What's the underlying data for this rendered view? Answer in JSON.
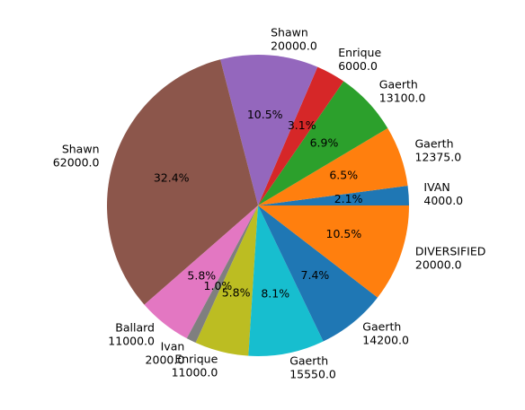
{
  "chart_data": {
    "type": "pie",
    "start_angle_deg": 0,
    "direction": "counterclockwise",
    "slices": [
      {
        "label": "IVAN",
        "value": 4000.0,
        "value_text": "4000.0",
        "pct_text": "2.1%",
        "color": "#1f77b4"
      },
      {
        "label": "Gaerth",
        "value": 12375.0,
        "value_text": "12375.0",
        "pct_text": "6.5%",
        "color": "#ff7f0e"
      },
      {
        "label": "Gaerth",
        "value": 13100.0,
        "value_text": "13100.0",
        "pct_text": "6.9%",
        "color": "#2ca02c"
      },
      {
        "label": "Enrique",
        "value": 6000.0,
        "value_text": "6000.0",
        "pct_text": "3.1%",
        "color": "#d62728"
      },
      {
        "label": "Shawn",
        "value": 20000.0,
        "value_text": "20000.0",
        "pct_text": "10.5%",
        "color": "#9467bd"
      },
      {
        "label": "Shawn",
        "value": 62000.0,
        "value_text": "62000.0",
        "pct_text": "32.4%",
        "color": "#8c564b"
      },
      {
        "label": "Ballard",
        "value": 11000.0,
        "value_text": "11000.0",
        "pct_text": "5.8%",
        "color": "#e377c2"
      },
      {
        "label": "Ivan",
        "value": 2000.0,
        "value_text": "2000.0",
        "pct_text": "1.0%",
        "color": "#7f7f7f"
      },
      {
        "label": "Enrique",
        "value": 11000.0,
        "value_text": "11000.0",
        "pct_text": "5.8%",
        "color": "#bcbd22"
      },
      {
        "label": "Gaerth",
        "value": 15550.0,
        "value_text": "15550.0",
        "pct_text": "8.1%",
        "color": "#17becf"
      },
      {
        "label": "Gaerth",
        "value": 14200.0,
        "value_text": "14200.0",
        "pct_text": "7.4%",
        "color": "#1f77b4"
      },
      {
        "label": "DIVERSIFIED",
        "value": 20000.0,
        "value_text": "20000.0",
        "pct_text": "10.5%",
        "color": "#ff7f0e"
      }
    ]
  }
}
